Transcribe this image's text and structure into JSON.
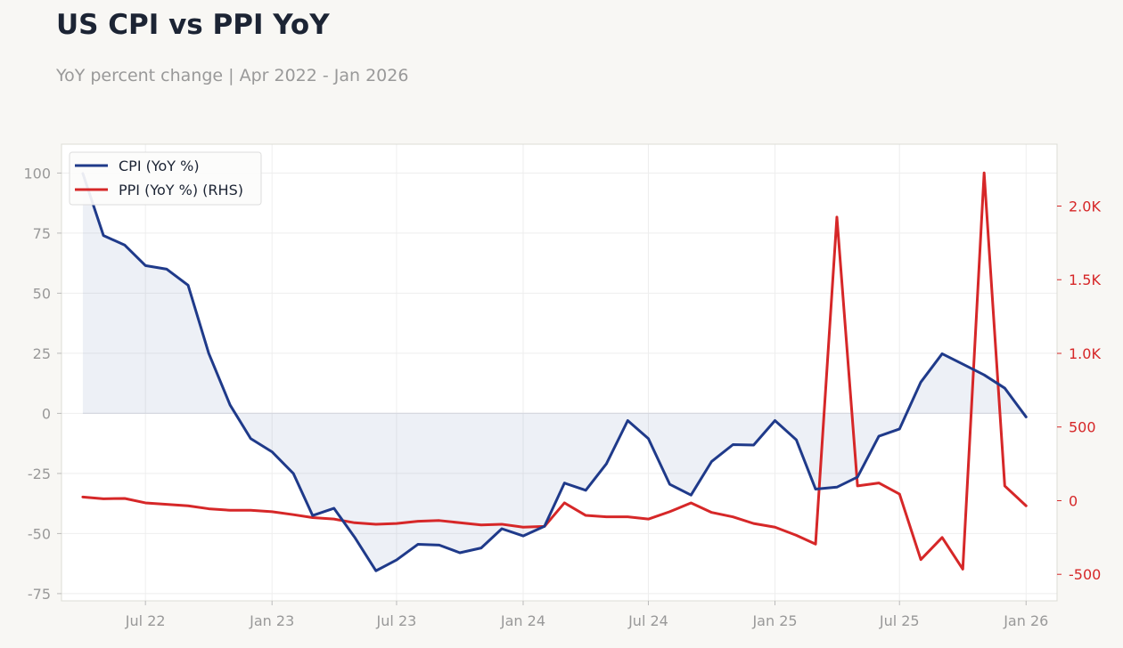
{
  "title": "US CPI vs PPI YoY",
  "subtitle": "YoY percent change | Apr 2022 - Jan 2026",
  "colors": {
    "background": "#f8f7f4",
    "plot_background": "#ffffff",
    "cpi": "#1f3a8a",
    "ppi": "#d62728",
    "tick_text": "#999999",
    "grid": "#eeeeee"
  },
  "chart_data": {
    "type": "line",
    "x": [
      "2022-04",
      "2022-05",
      "2022-06",
      "2022-07",
      "2022-08",
      "2022-09",
      "2022-10",
      "2022-11",
      "2022-12",
      "2023-01",
      "2023-02",
      "2023-03",
      "2023-04",
      "2023-05",
      "2023-06",
      "2023-07",
      "2023-08",
      "2023-09",
      "2023-10",
      "2023-11",
      "2023-12",
      "2024-01",
      "2024-02",
      "2024-03",
      "2024-04",
      "2024-05",
      "2024-06",
      "2024-07",
      "2024-08",
      "2024-09",
      "2024-10",
      "2024-11",
      "2024-12",
      "2025-01",
      "2025-02",
      "2025-03",
      "2025-04",
      "2025-05",
      "2025-06",
      "2025-07",
      "2025-08",
      "2025-09",
      "2025-10",
      "2025-11",
      "2025-12",
      "2026-01"
    ],
    "series": [
      {
        "name": "CPI (YoY %)",
        "axis": "left",
        "color": "#1f3a8a",
        "fill_to_zero": true,
        "values": [
          99.8,
          74,
          70,
          61.5,
          60,
          53.3,
          25,
          3.5,
          -10.5,
          -16,
          -25,
          -42.5,
          -39.5,
          -51.5,
          -65.5,
          -61,
          -54.5,
          -54.8,
          -58,
          -56,
          -48,
          -51,
          -47,
          -29,
          -32,
          -21,
          -3,
          -10.5,
          -29.5,
          -34,
          -20,
          -13,
          -13.2,
          -3,
          -11,
          -31.5,
          -30.7,
          -26.5,
          -9.5,
          -6.5,
          13,
          24.8,
          20.5,
          16,
          10.5,
          -1.5
        ]
      },
      {
        "name": "PPI (YoY %) (RHS)",
        "axis": "right",
        "color": "#d62728",
        "values": [
          25,
          13,
          15,
          -15,
          -25,
          -35,
          -55,
          -65,
          -65,
          -75,
          -95,
          -115,
          -125,
          -150,
          -160,
          -155,
          -140,
          -135,
          -150,
          -165,
          -160,
          -180,
          -175,
          -15,
          -100,
          -110,
          -110,
          -125,
          -75,
          -15,
          -80,
          -110,
          -155,
          -180,
          -235,
          -295,
          1925,
          100,
          120,
          45,
          -400,
          -250,
          -465,
          2225,
          100,
          -35
        ]
      }
    ],
    "left_axis": {
      "ylim": [
        -78,
        112
      ],
      "ticks": [
        -75,
        -50,
        -25,
        0,
        25,
        50,
        75,
        100
      ],
      "tick_labels": [
        "-75",
        "-50",
        "-25",
        "0",
        "25",
        "50",
        "75",
        "100"
      ]
    },
    "right_axis": {
      "ylim": [
        -680,
        2420
      ],
      "ticks": [
        -500,
        0,
        500,
        1000,
        1500,
        2000
      ],
      "tick_labels": [
        "-500",
        "0",
        "500",
        "1.0K",
        "1.5K",
        "2.0K"
      ]
    },
    "x_ticks": {
      "values": [
        "2022-07",
        "2023-01",
        "2023-07",
        "2024-01",
        "2024-07",
        "2025-01",
        "2025-07",
        "2026-01"
      ],
      "labels": [
        "Jul 22",
        "Jan 23",
        "Jul 23",
        "Jan 24",
        "Jul 24",
        "Jan 25",
        "Jul 25",
        "Jan 26"
      ]
    },
    "xlim": [
      "2022-03-01",
      "2026-02-15"
    ],
    "grid": true,
    "legend_position": "top-left"
  }
}
